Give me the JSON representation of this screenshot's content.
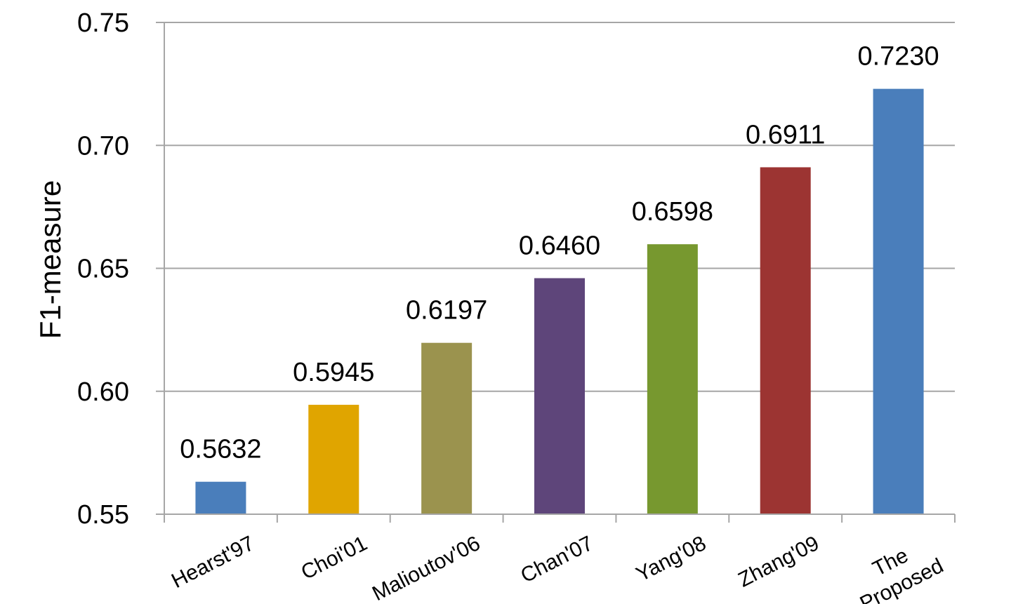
{
  "chart_data": {
    "type": "bar",
    "ylabel": "F1-measure",
    "xlabel": "",
    "title": "",
    "ylim": [
      0.55,
      0.75
    ],
    "yticks": [
      "0.55",
      "0.60",
      "0.65",
      "0.70",
      "0.75"
    ],
    "grid": true,
    "categories": [
      "Hearst'97",
      "Choi'01",
      "Malioutov'06",
      "Chan'07",
      "Yang'08",
      "Zhang'09",
      "The Proposed"
    ],
    "values": [
      0.5632,
      0.5945,
      0.6197,
      0.646,
      0.6598,
      0.6911,
      0.723
    ],
    "value_labels": [
      "0.5632",
      "0.5945",
      "0.6197",
      "0.6460",
      "0.6598",
      "0.6911",
      "0.7230"
    ],
    "colors": [
      "#4a7ebb",
      "#e0a500",
      "#9b934e",
      "#5e457a",
      "#77982f",
      "#9c3432",
      "#4a7ebb"
    ]
  }
}
